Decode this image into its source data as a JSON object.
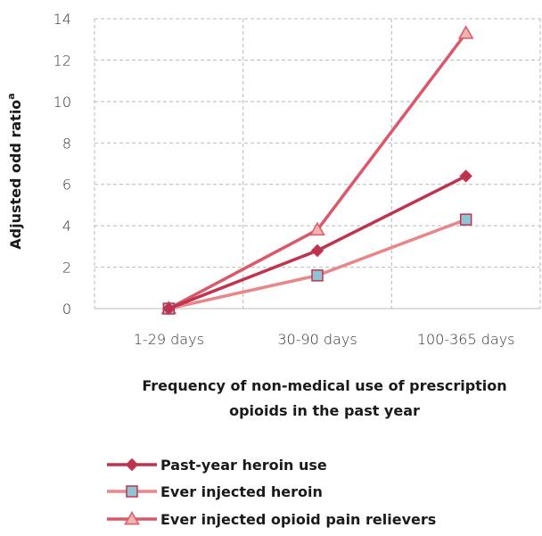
{
  "chart_data": {
    "type": "line",
    "categories": [
      "1-29 days",
      "30-90 days",
      "100-365 days"
    ],
    "series": [
      {
        "name": "Past-year heroin use",
        "values": [
          0,
          2.8,
          6.4
        ],
        "color": "#c0334f",
        "marker": "diamond"
      },
      {
        "name": "Ever injected heroin",
        "values": [
          0,
          1.6,
          4.3
        ],
        "color": "#e8868a",
        "marker": "square",
        "marker_fill": "#8fc4d4"
      },
      {
        "name": "Ever injected opioid pain relievers",
        "values": [
          0,
          3.8,
          13.3
        ],
        "color": "#d9596a",
        "marker": "triangle",
        "marker_fill": "#f4b3ae"
      }
    ],
    "ylim": [
      0,
      14
    ],
    "yticks": [
      "0",
      "2",
      "4",
      "6",
      "8",
      "10",
      "12",
      "14"
    ],
    "ylabel": "Adjusted odd ratio",
    "ylabel_superscript": "a",
    "xlabel_line1": "Frequency of non-medical use of prescription",
    "xlabel_line2": "opioids in the past year",
    "grid": "dashed",
    "legend_position": "bottom"
  }
}
